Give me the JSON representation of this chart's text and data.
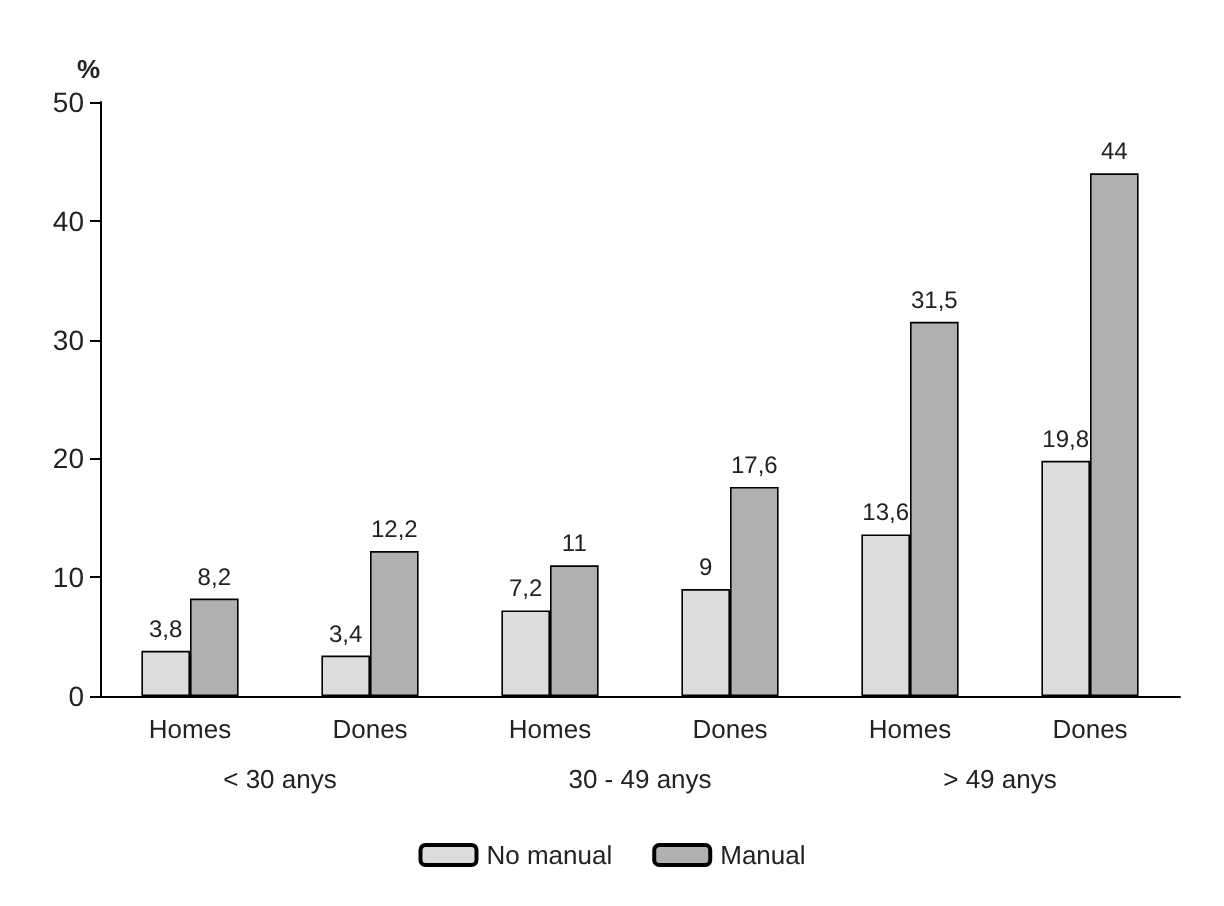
{
  "chart_data": {
    "type": "bar",
    "ylabel": "%",
    "categories": [
      "Homes",
      "Dones",
      "Homes",
      "Dones",
      "Homes",
      "Dones"
    ],
    "series": [
      {
        "name": "No manual",
        "color": "#dcdcdc",
        "values": [
          3.8,
          3.4,
          7.2,
          9,
          13.6,
          19.8
        ],
        "value_labels": [
          "3,8",
          "3,4",
          "7,2",
          "9",
          "13,6",
          "19,8"
        ]
      },
      {
        "name": "Manual",
        "color": "#b0b0b0",
        "values": [
          8.2,
          12.2,
          11,
          17.6,
          31.5,
          44
        ],
        "value_labels": [
          "8,2",
          "12,2",
          "11",
          "17,6",
          "31,5",
          "44"
        ]
      }
    ],
    "ylim": [
      0,
      50
    ],
    "yticks": [
      0,
      10,
      20,
      30,
      40,
      50
    ],
    "grid": false,
    "legend": "bottom",
    "annotations": [
      "< 30 anys",
      "30 - 49 anys",
      "> 49 anys"
    ]
  }
}
